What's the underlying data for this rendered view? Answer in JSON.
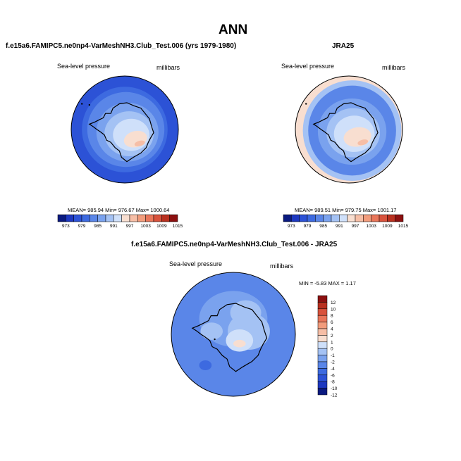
{
  "page": {
    "title": "ANN"
  },
  "colors": {
    "coast": "#000000",
    "scale": [
      "#0a1a80",
      "#1d38c0",
      "#2c52d6",
      "#3d6ae0",
      "#5a86e8",
      "#7aa2ee",
      "#a4c2f4",
      "#cfe0fa",
      "#f8ded0",
      "#f6bea6",
      "#f29c7c",
      "#e9765a",
      "#d8523c",
      "#b9301f",
      "#8c1010"
    ]
  },
  "chart_data": [
    {
      "type": "heatmap",
      "title": "f.e15a6.FAMIPC5.ne0np4-VarMeshNH3.Club_Test.006 (yrs 1979-1980)",
      "variable": "Sea-level pressure",
      "units": "millibars",
      "stats": {
        "mean": "985.94",
        "min": "976.67",
        "max": "1000.64"
      },
      "stats_text": "MEAN= 985.94   Min= 976.67   Max= 1000.64",
      "colorbar_labels": [
        "973",
        "979",
        "985",
        "991",
        "997",
        "1003",
        "1009",
        "1015"
      ]
    },
    {
      "type": "heatmap",
      "title": "JRA25",
      "variable": "Sea-level pressure",
      "units": "millibars",
      "stats": {
        "mean": "989.51",
        "min": "979.75",
        "max": "1001.17"
      },
      "stats_text": "MEAN= 989.51   Min= 979.75   Max= 1001.17",
      "colorbar_labels": [
        "973",
        "979",
        "985",
        "991",
        "997",
        "1003",
        "1009",
        "1015"
      ]
    },
    {
      "type": "heatmap",
      "title": "f.e15a6.FAMIPC5.ne0np4-VarMeshNH3.Club_Test.006 - JRA25",
      "variable": "Sea-level pressure",
      "units": "millibars",
      "stats": {
        "min": "-5.83",
        "max": "1.17"
      },
      "stats_text": "MIN =  -5.83 MAX =   1.17",
      "colorbar_labels": [
        "12",
        "10",
        "8",
        "6",
        "4",
        "2",
        "1",
        "0",
        "-1",
        "-2",
        "-4",
        "-6",
        "-8",
        "-10",
        "-12"
      ]
    }
  ]
}
